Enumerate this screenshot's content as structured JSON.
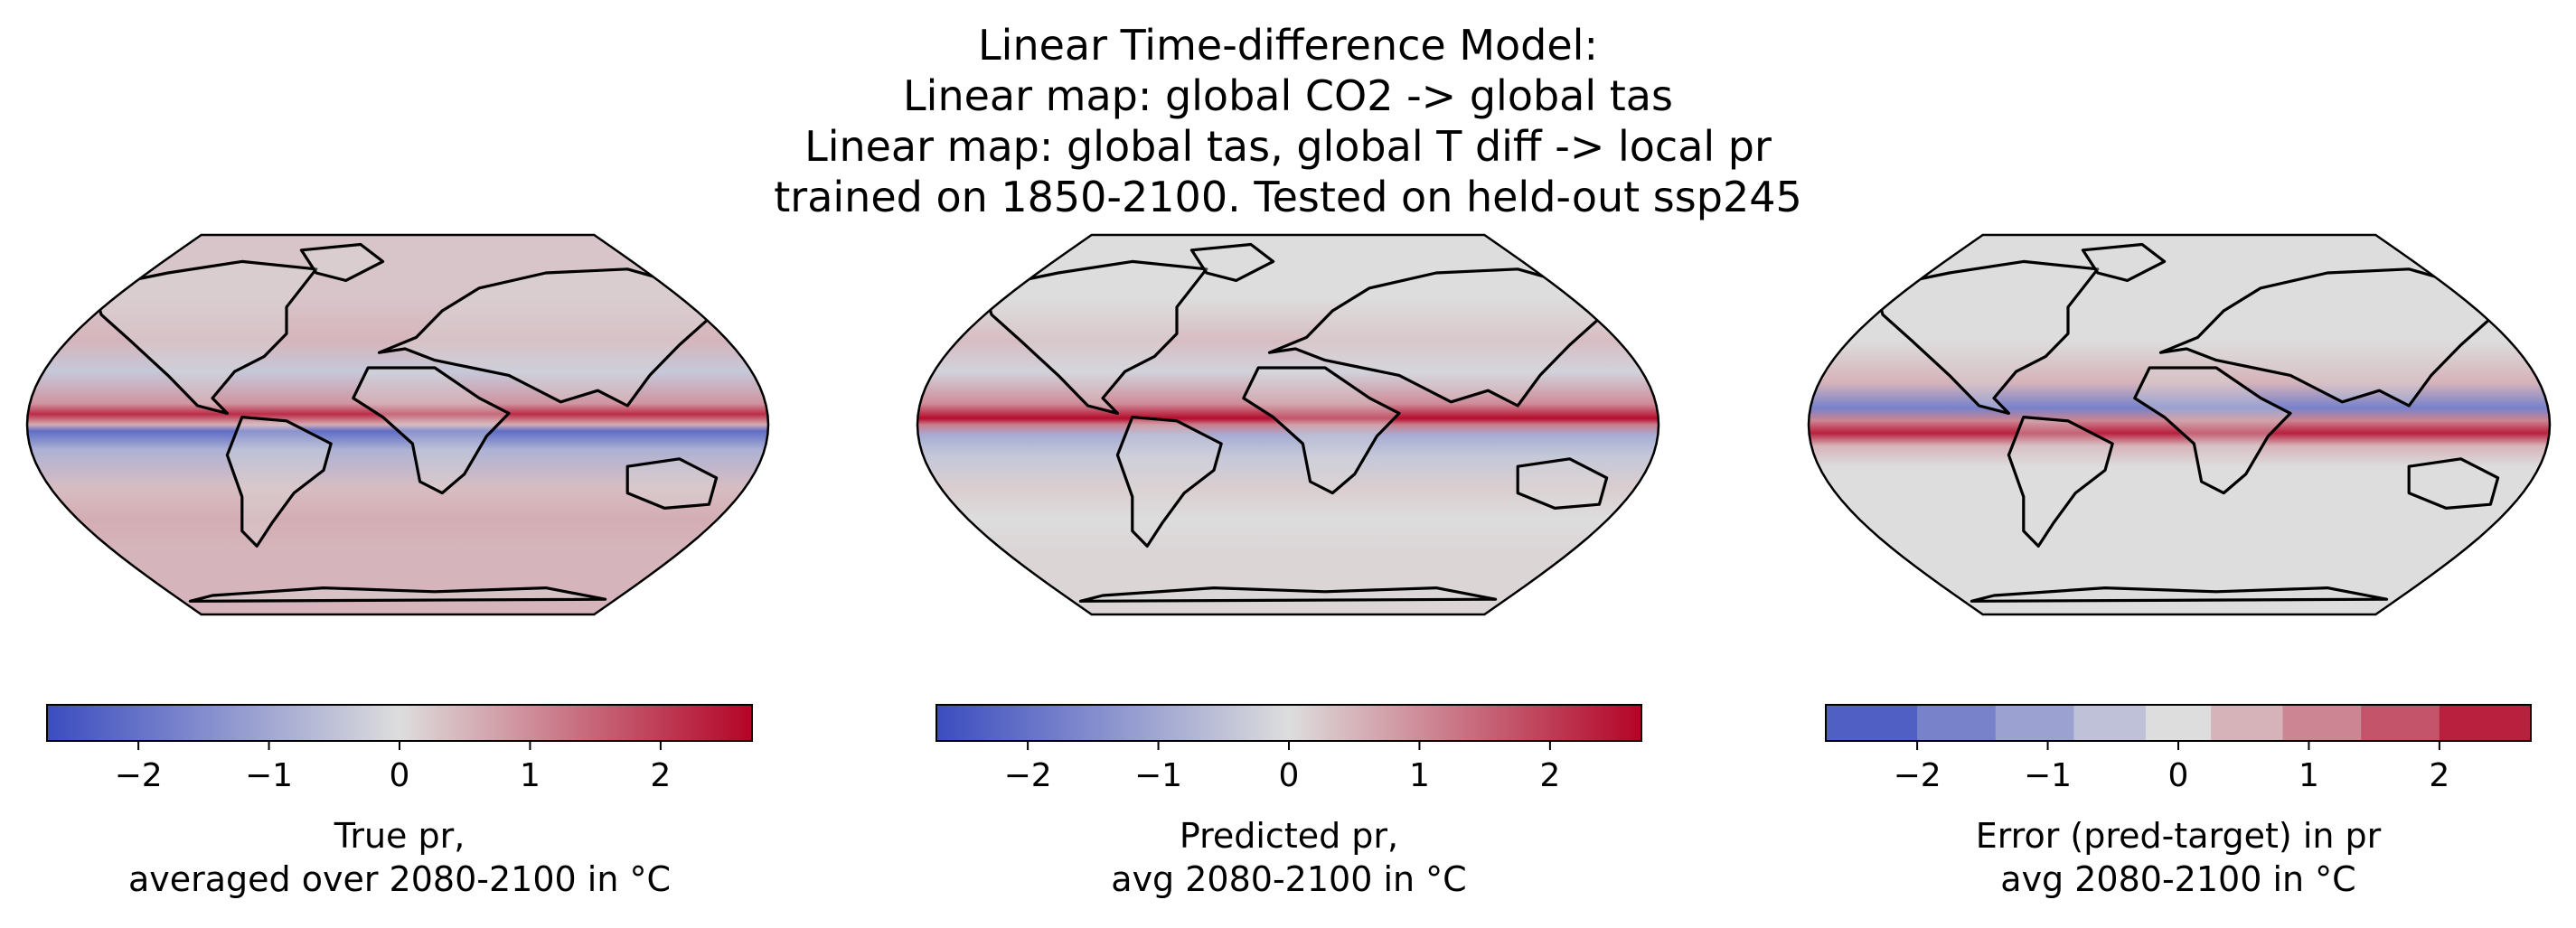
{
  "chart_data": {
    "type": "heatmap",
    "title_lines": [
      "Linear Time-difference Model:",
      "Linear map: global CO2 -> global tas",
      "Linear map: global tas, global T diff -> local pr",
      "trained on 1850-2100. Tested on held-out ssp245"
    ],
    "colormap": "coolwarm",
    "colors": {
      "low": "#3b4cc0",
      "mid": "#dddddd",
      "high": "#b40426",
      "land_outline": "#000000"
    },
    "panels": [
      {
        "name": "true-pr",
        "colorbar": {
          "vmin": -2.7,
          "vmax": 2.7,
          "discrete": false,
          "ticks": [
            -2,
            -1,
            0,
            1,
            2
          ],
          "tick_labels": [
            "−2",
            "−1",
            "0",
            "1",
            "2"
          ]
        },
        "label_lines": [
          "True pr,",
          "averaged over 2080-2100 in °C"
        ],
        "bands": [
          {
            "lat": 60,
            "value": 0.3
          },
          {
            "lat": 40,
            "value": 0.5
          },
          {
            "lat": 25,
            "value": -0.4
          },
          {
            "lat": 10,
            "value": 0.9
          },
          {
            "lat": 5,
            "value": 2.2
          },
          {
            "lat": 0,
            "value": 0.6
          },
          {
            "lat": -3,
            "value": -2.1
          },
          {
            "lat": -12,
            "value": -0.8
          },
          {
            "lat": -30,
            "value": 0.4
          },
          {
            "lat": -45,
            "value": 0.6
          },
          {
            "lat": -60,
            "value": 0.5
          }
        ]
      },
      {
        "name": "predicted-pr",
        "colorbar": {
          "vmin": -2.7,
          "vmax": 2.7,
          "discrete": false,
          "ticks": [
            -2,
            -1,
            0,
            1,
            2
          ],
          "tick_labels": [
            "−2",
            "−1",
            "0",
            "1",
            "2"
          ]
        },
        "label_lines": [
          "Predicted pr,",
          "avg 2080-2100 in °C"
        ],
        "bands": [
          {
            "lat": 60,
            "value": 0.0
          },
          {
            "lat": 40,
            "value": 0.4
          },
          {
            "lat": 25,
            "value": -0.2
          },
          {
            "lat": 10,
            "value": 1.0
          },
          {
            "lat": 3,
            "value": 2.6
          },
          {
            "lat": 0,
            "value": 1.2
          },
          {
            "lat": -5,
            "value": -0.9
          },
          {
            "lat": -15,
            "value": -0.4
          },
          {
            "lat": -30,
            "value": 0.2
          },
          {
            "lat": -45,
            "value": 0.0
          },
          {
            "lat": -60,
            "value": 0.1
          }
        ]
      },
      {
        "name": "error-pr",
        "colorbar": {
          "vmin": -2.7,
          "vmax": 2.7,
          "discrete": true,
          "bounds": [
            -2.7,
            -2.0,
            -1.4,
            -0.8,
            -0.25,
            0.25,
            0.8,
            1.4,
            2.0,
            2.7
          ],
          "ticks": [
            -2,
            -1,
            0,
            1,
            2
          ],
          "tick_labels": [
            "−2",
            "−1",
            "0",
            "1",
            "2"
          ]
        },
        "label_lines": [
          "Error (pred-target) in pr",
          "avg 2080-2100 in °C"
        ],
        "bands": [
          {
            "lat": 60,
            "value": 0.0
          },
          {
            "lat": 40,
            "value": 0.0
          },
          {
            "lat": 20,
            "value": 0.3
          },
          {
            "lat": 8,
            "value": -1.5
          },
          {
            "lat": 2,
            "value": 0.9
          },
          {
            "lat": -4,
            "value": 2.1
          },
          {
            "lat": -10,
            "value": 0.5
          },
          {
            "lat": -20,
            "value": 0.0
          },
          {
            "lat": -45,
            "value": 0.0
          },
          {
            "lat": -60,
            "value": 0.0
          }
        ]
      }
    ]
  }
}
